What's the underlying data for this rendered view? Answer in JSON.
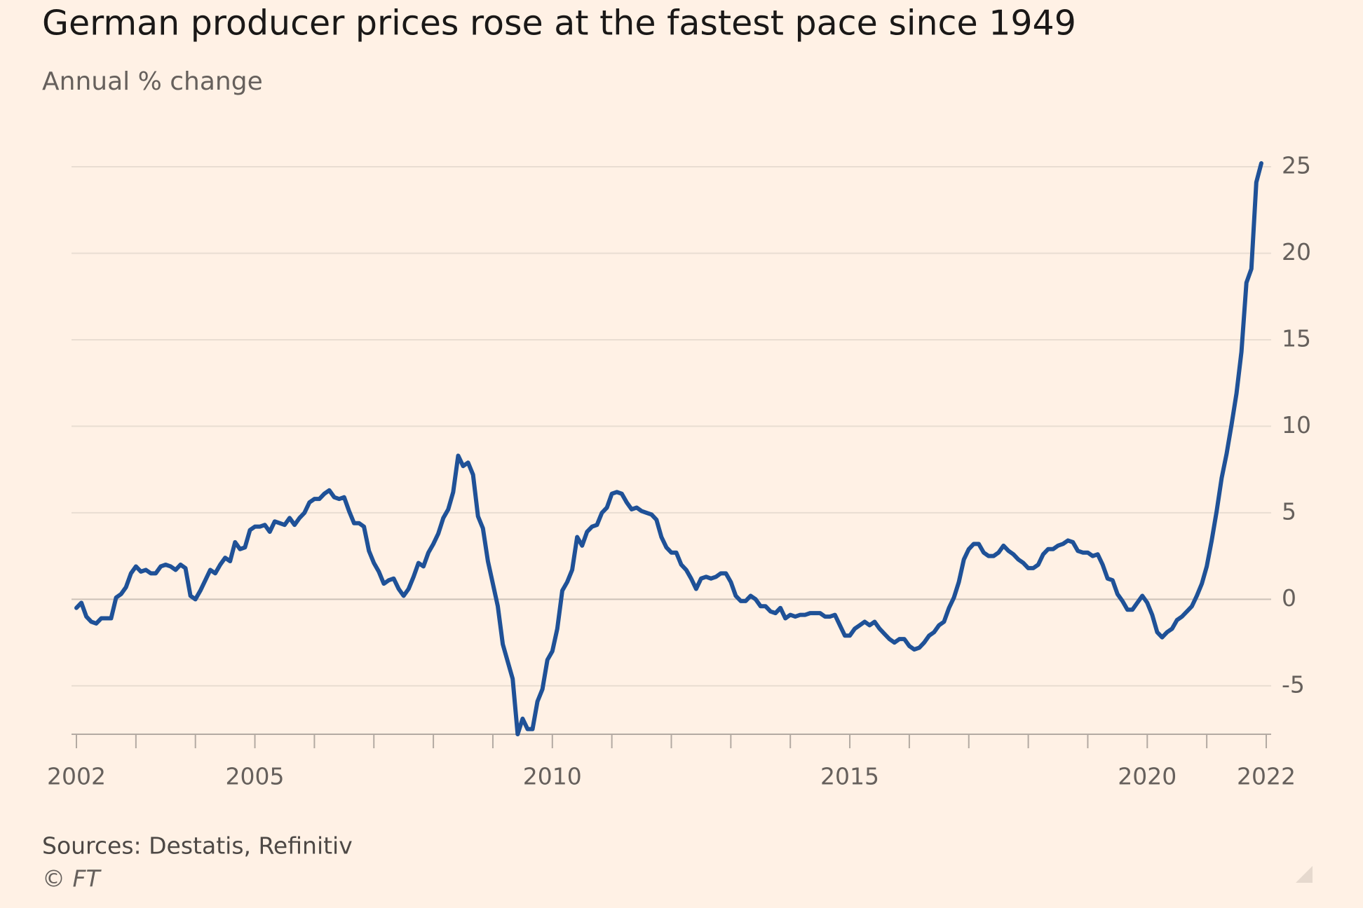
{
  "chart_data": {
    "type": "line",
    "title": "German producer prices rose at the fastest pace since 1949",
    "subtitle": "Annual % change",
    "source": "Sources: Destatis, Refinitiv",
    "copyright": "© FT",
    "color": "#1f5197",
    "grid": true,
    "xlim": [
      2002,
      2022
    ],
    "xticks": [
      2002,
      2005,
      2010,
      2015,
      2020,
      2022
    ],
    "xminorticks": [
      2003,
      2004,
      2006,
      2007,
      2008,
      2009,
      2011,
      2012,
      2013,
      2014,
      2016,
      2017,
      2018,
      2019,
      2021
    ],
    "ylim": [
      -7.8,
      25
    ],
    "yticks": [
      -5,
      0,
      5,
      10,
      15,
      20,
      25
    ],
    "x": [
      2002,
      2002.083,
      2002.167,
      2002.25,
      2002.333,
      2002.417,
      2002.5,
      2002.583,
      2002.667,
      2002.75,
      2002.833,
      2002.917,
      2003,
      2003.083,
      2003.167,
      2003.25,
      2003.333,
      2003.417,
      2003.5,
      2003.583,
      2003.667,
      2003.75,
      2003.833,
      2003.917,
      2004,
      2004.083,
      2004.167,
      2004.25,
      2004.333,
      2004.417,
      2004.5,
      2004.583,
      2004.667,
      2004.75,
      2004.833,
      2004.917,
      2005,
      2005.083,
      2005.167,
      2005.25,
      2005.333,
      2005.417,
      2005.5,
      2005.583,
      2005.667,
      2005.75,
      2005.833,
      2005.917,
      2006,
      2006.083,
      2006.167,
      2006.25,
      2006.333,
      2006.417,
      2006.5,
      2006.583,
      2006.667,
      2006.75,
      2006.833,
      2006.917,
      2007,
      2007.083,
      2007.167,
      2007.25,
      2007.333,
      2007.417,
      2007.5,
      2007.583,
      2007.667,
      2007.75,
      2007.833,
      2007.917,
      2008,
      2008.083,
      2008.167,
      2008.25,
      2008.333,
      2008.417,
      2008.5,
      2008.583,
      2008.667,
      2008.75,
      2008.833,
      2008.917,
      2009,
      2009.083,
      2009.167,
      2009.25,
      2009.333,
      2009.417,
      2009.5,
      2009.583,
      2009.667,
      2009.75,
      2009.833,
      2009.917,
      2010,
      2010.083,
      2010.167,
      2010.25,
      2010.333,
      2010.417,
      2010.5,
      2010.583,
      2010.667,
      2010.75,
      2010.833,
      2010.917,
      2011,
      2011.083,
      2011.167,
      2011.25,
      2011.333,
      2011.417,
      2011.5,
      2011.583,
      2011.667,
      2011.75,
      2011.833,
      2011.917,
      2012,
      2012.083,
      2012.167,
      2012.25,
      2012.333,
      2012.417,
      2012.5,
      2012.583,
      2012.667,
      2012.75,
      2012.833,
      2012.917,
      2013,
      2013.083,
      2013.167,
      2013.25,
      2013.333,
      2013.417,
      2013.5,
      2013.583,
      2013.667,
      2013.75,
      2013.833,
      2013.917,
      2014,
      2014.083,
      2014.167,
      2014.25,
      2014.333,
      2014.417,
      2014.5,
      2014.583,
      2014.667,
      2014.75,
      2014.833,
      2014.917,
      2015,
      2015.083,
      2015.167,
      2015.25,
      2015.333,
      2015.417,
      2015.5,
      2015.583,
      2015.667,
      2015.75,
      2015.833,
      2015.917,
      2016,
      2016.083,
      2016.167,
      2016.25,
      2016.333,
      2016.417,
      2016.5,
      2016.583,
      2016.667,
      2016.75,
      2016.833,
      2016.917,
      2017,
      2017.083,
      2017.167,
      2017.25,
      2017.333,
      2017.417,
      2017.5,
      2017.583,
      2017.667,
      2017.75,
      2017.833,
      2017.917,
      2018,
      2018.083,
      2018.167,
      2018.25,
      2018.333,
      2018.417,
      2018.5,
      2018.583,
      2018.667,
      2018.75,
      2018.833,
      2018.917,
      2019,
      2019.083,
      2019.167,
      2019.25,
      2019.333,
      2019.417,
      2019.5,
      2019.583,
      2019.667,
      2019.75,
      2019.833,
      2019.917,
      2020,
      2020.083,
      2020.167,
      2020.25,
      2020.333,
      2020.417,
      2020.5,
      2020.583,
      2020.667,
      2020.75,
      2020.833,
      2020.917,
      2021,
      2021.083,
      2021.167,
      2021.25,
      2021.333,
      2021.417,
      2021.5,
      2021.583,
      2021.667,
      2021.75,
      2021.833,
      2021.917
    ],
    "values": [
      -0.5,
      -0.2,
      -1.0,
      -1.3,
      -1.4,
      -1.1,
      -1.1,
      -1.1,
      0.1,
      0.3,
      0.7,
      1.5,
      1.9,
      1.6,
      1.7,
      1.5,
      1.5,
      1.9,
      2.0,
      1.9,
      1.7,
      2.0,
      1.8,
      0.2,
      0,
      0.5,
      1.1,
      1.7,
      1.5,
      2.0,
      2.4,
      2.2,
      3.3,
      2.9,
      3.0,
      4.0,
      4.2,
      4.2,
      4.3,
      3.9,
      4.5,
      4.4,
      4.3,
      4.7,
      4.3,
      4.7,
      5.0,
      5.6,
      5.8,
      5.8,
      6.1,
      6.3,
      5.9,
      5.8,
      5.9,
      5.1,
      4.4,
      4.4,
      4.2,
      2.8,
      2.1,
      1.6,
      0.9,
      1.1,
      1.2,
      0.6,
      0.2,
      0.6,
      1.3,
      2.1,
      1.9,
      2.7,
      3.2,
      3.8,
      4.7,
      5.2,
      6.2,
      8.3,
      7.7,
      7.9,
      7.2,
      4.8,
      4.1,
      2.2,
      0.9,
      -0.4,
      -2.6,
      -3.6,
      -4.6,
      -7.8,
      -6.9,
      -7.5,
      -7.5,
      -5.9,
      -5.2,
      -3.5,
      -3.0,
      -1.7,
      0.5,
      1.0,
      1.7,
      3.6,
      3.1,
      3.9,
      4.2,
      4.3,
      5.0,
      5.3,
      6.1,
      6.2,
      6.1,
      5.6,
      5.2,
      5.3,
      5.1,
      5.0,
      4.9,
      4.6,
      3.6,
      3.0,
      2.7,
      2.7,
      2.0,
      1.7,
      1.2,
      0.6,
      1.2,
      1.3,
      1.2,
      1.3,
      1.5,
      1.5,
      1.0,
      0.2,
      -0.1,
      -0.1,
      0.2,
      0,
      -0.4,
      -0.4,
      -0.7,
      -0.8,
      -0.5,
      -1.1,
      -0.9,
      -1.0,
      -0.9,
      -0.9,
      -0.8,
      -0.8,
      -0.8,
      -1.0,
      -1.0,
      -0.9,
      -1.5,
      -2.1,
      -2.1,
      -1.7,
      -1.5,
      -1.3,
      -1.5,
      -1.3,
      -1.7,
      -2.0,
      -2.3,
      -2.5,
      -2.3,
      -2.3,
      -2.7,
      -2.9,
      -2.8,
      -2.5,
      -2.1,
      -1.9,
      -1.5,
      -1.3,
      -0.5,
      0.1,
      1.0,
      2.3,
      2.9,
      3.2,
      3.2,
      2.7,
      2.5,
      2.5,
      2.7,
      3.1,
      2.8,
      2.6,
      2.3,
      2.1,
      1.8,
      1.8,
      2.0,
      2.6,
      2.9,
      2.9,
      3.1,
      3.2,
      3.4,
      3.3,
      2.8,
      2.7,
      2.7,
      2.5,
      2.6,
      2.0,
      1.2,
      1.1,
      0.3,
      -0.1,
      -0.6,
      -0.6,
      -0.2,
      0.2,
      -0.2,
      -0.9,
      -1.9,
      -2.2,
      -1.9,
      -1.7,
      -1.2,
      -1.0,
      -0.7,
      -0.4,
      0.2,
      0.9,
      1.9,
      3.4,
      5.1,
      7.0,
      8.4,
      10.1,
      11.9,
      14.3,
      18.3,
      19.1,
      24.1,
      25.2
    ]
  }
}
